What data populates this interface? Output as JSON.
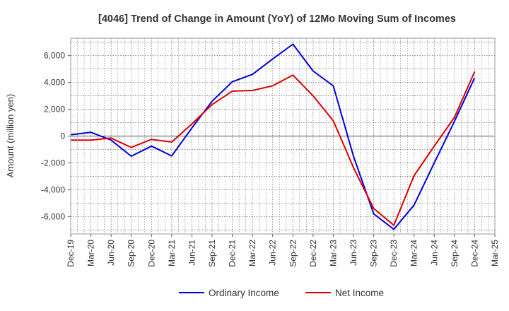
{
  "chart_data": {
    "type": "line",
    "title": "[4046]  Trend of Change in Amount (YoY) of 12Mo Moving Sum of Incomes",
    "xlabel": "",
    "ylabel": "Amount (million yen)",
    "categories": [
      "Dec-19",
      "Mar-20",
      "Jun-20",
      "Sep-20",
      "Dec-20",
      "Mar-21",
      "Jun-21",
      "Sep-21",
      "Dec-21",
      "Mar-22",
      "Jun-22",
      "Sep-22",
      "Dec-22",
      "Mar-23",
      "Jun-23",
      "Sep-23",
      "Dec-23",
      "Mar-24",
      "Jun-24",
      "Sep-24",
      "Dec-24",
      "Mar-25"
    ],
    "y_ticks": [
      -6000,
      -4000,
      -2000,
      0,
      2000,
      4000,
      6000
    ],
    "y_tick_labels": [
      "-6,000",
      "-4,000",
      "-2,000",
      "0",
      "2,000",
      "4,000",
      "6,000"
    ],
    "ylim": [
      -7300,
      7300
    ],
    "grid": true,
    "legend_position": "bottom",
    "series": [
      {
        "name": "Ordinary Income",
        "color": "#0000dd",
        "values": [
          100,
          280,
          -300,
          -1500,
          -750,
          -1480,
          600,
          2600,
          4050,
          4600,
          5750,
          6850,
          4850,
          3750,
          -1500,
          -5800,
          -6950,
          -5150,
          -2000,
          1100,
          4350,
          null
        ]
      },
      {
        "name": "Net Income",
        "color": "#dd0000",
        "values": [
          -300,
          -300,
          -150,
          -850,
          -250,
          -450,
          900,
          2350,
          3350,
          3400,
          3750,
          4550,
          3000,
          1150,
          -2350,
          -5400,
          -6650,
          -2950,
          -750,
          1400,
          4800,
          null
        ]
      }
    ]
  }
}
